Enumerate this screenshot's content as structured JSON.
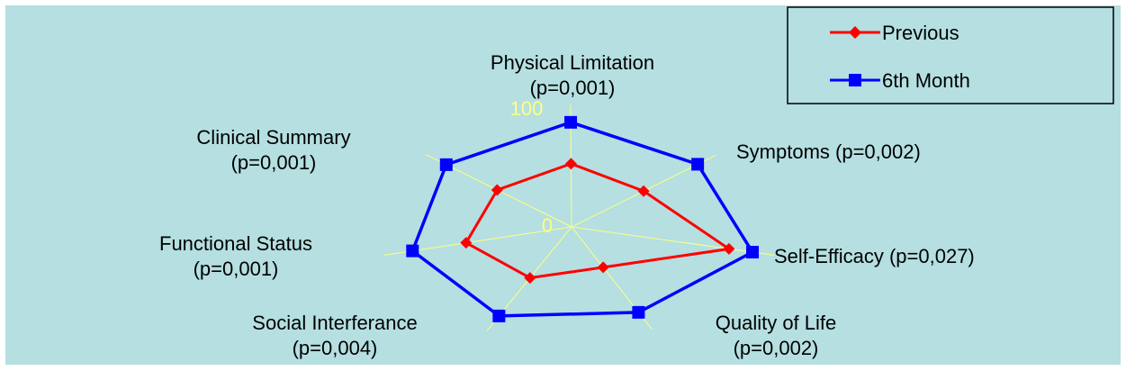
{
  "chart_data": {
    "type": "radar",
    "categories": [
      "Physical Limitation",
      "Symptoms (p=0,002)",
      "Self-Efficacy (p=0,027)",
      "Quality of Life",
      "Social Interferance",
      "Functional Status",
      "Clinical Summary"
    ],
    "category_labels": [
      [
        "Physical Limitation",
        "(p=0,001)"
      ],
      [
        "Symptoms (p=0,002)"
      ],
      [
        "Self-Efficacy (p=0,027)"
      ],
      [
        "Quality of Life",
        "(p=0,002)"
      ],
      [
        "Social Interferance",
        "(p=0,004)"
      ],
      [
        "Functional Status",
        "(p=0,001)"
      ],
      [
        "Clinical Summary",
        "(p=0,001)"
      ]
    ],
    "series": [
      {
        "name": "Previous",
        "color": "#ff0000",
        "marker": "diamond",
        "values": [
          58,
          56,
          87,
          44,
          55,
          63,
          57
        ]
      },
      {
        "name": "6th Month",
        "color": "#0000ff",
        "marker": "square",
        "values": [
          96,
          98,
          100,
          93,
          96,
          95,
          96
        ]
      }
    ],
    "rlim": [
      0,
      100
    ],
    "tick_labels": [
      "0",
      "100"
    ],
    "grid": true,
    "legend_position": "top-right",
    "colors": {
      "background": "#b5dfe1",
      "spokes": "#ffff80",
      "tick_text": "#ffff80",
      "legend_bg": "#b5dfe1",
      "legend_border": "#000000"
    }
  }
}
